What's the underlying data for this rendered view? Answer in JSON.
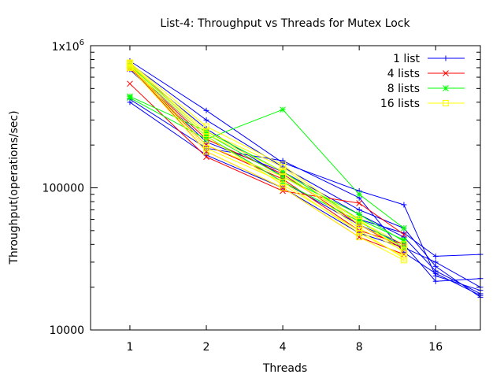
{
  "chart_data": {
    "type": "line",
    "title": "List-4: Throughput vs Threads for Mutex Lock",
    "xlabel": "Threads",
    "ylabel": "Throughput(operations/sec)",
    "x_scale": "log2",
    "y_scale": "log10",
    "xlim": [
      0.7,
      24
    ],
    "ylim": [
      10000,
      1000000
    ],
    "x_ticks": [
      {
        "value": 1,
        "label": "1"
      },
      {
        "value": 2,
        "label": "2"
      },
      {
        "value": 4,
        "label": "4"
      },
      {
        "value": 8,
        "label": "8"
      },
      {
        "value": 16,
        "label": "16"
      }
    ],
    "y_ticks": [
      {
        "value": 10000,
        "label": "10000"
      },
      {
        "value": 100000,
        "label": "100000"
      }
    ],
    "y_top_label": {
      "base": "1x10",
      "exponent": "6"
    },
    "legend_position": "top-right",
    "series": [
      {
        "name": "1 list",
        "color": "#0000ff",
        "marker": "plus",
        "runs": [
          {
            "x": [
              1,
              2,
              4,
              8,
              12,
              16,
              24
            ],
            "y": [
              780000,
              350000,
              150000,
              95000,
              76000,
              24000,
              19000
            ]
          },
          {
            "x": [
              1,
              2,
              4,
              8,
              12,
              16,
              24
            ],
            "y": [
              750000,
              300000,
              140000,
              70000,
              52000,
              28000,
              17000
            ]
          },
          {
            "x": [
              1,
              2,
              4,
              8,
              12,
              16,
              24
            ],
            "y": [
              720000,
              260000,
              120000,
              60000,
              48000,
              33000,
              34000
            ]
          },
          {
            "x": [
              1,
              2,
              4,
              8,
              12,
              16,
              24
            ],
            "y": [
              700000,
              230000,
              110000,
              55000,
              40000,
              22000,
              23000
            ]
          },
          {
            "x": [
              1,
              2,
              4,
              8,
              12,
              16,
              24
            ],
            "y": [
              680000,
              210000,
              130000,
              65000,
              45000,
              26000,
              18000
            ]
          },
          {
            "x": [
              1,
              2,
              4,
              8,
              12,
              16,
              24
            ],
            "y": [
              400000,
              170000,
              100000,
              48000,
              38000,
              30000,
              20000
            ]
          },
          {
            "x": [
              1,
              2,
              4,
              8,
              12,
              16,
              24
            ],
            "y": [
              420000,
              190000,
              155000,
              85000,
              35000,
              25000,
              17500
            ]
          }
        ]
      },
      {
        "name": "4 lists",
        "color": "#ff0000",
        "marker": "cross",
        "runs": [
          {
            "x": [
              1,
              2,
              4,
              8,
              12
            ],
            "y": [
              540000,
              165000,
              95000,
              78000,
              47000
            ]
          },
          {
            "x": [
              1,
              2,
              4,
              8,
              12
            ],
            "y": [
              720000,
              180000,
              100000,
              45000,
              34000
            ]
          },
          {
            "x": [
              1,
              2,
              4,
              8,
              12
            ],
            "y": [
              700000,
              200000,
              115000,
              50000,
              40000
            ]
          },
          {
            "x": [
              1,
              2,
              4,
              8,
              12
            ],
            "y": [
              690000,
              220000,
              125000,
              55000,
              37000
            ]
          }
        ]
      },
      {
        "name": "8 lists",
        "color": "#00ff00",
        "marker": "star",
        "runs": [
          {
            "x": [
              1,
              2,
              4,
              8,
              12
            ],
            "y": [
              430000,
              220000,
              355000,
              90000,
              52000
            ]
          },
          {
            "x": [
              1,
              2,
              4,
              8,
              12
            ],
            "y": [
              440000,
              250000,
              130000,
              60000,
              43000
            ]
          },
          {
            "x": [
              1,
              2,
              4,
              8,
              12
            ],
            "y": [
              730000,
              240000,
              120000,
              65000,
              42000
            ]
          },
          {
            "x": [
              1,
              2,
              4,
              8,
              12
            ],
            "y": [
              710000,
              230000,
              110000,
              58000,
              38000
            ]
          }
        ]
      },
      {
        "name": "16 lists",
        "color": "#ffff00",
        "marker": "square",
        "runs": [
          {
            "x": [
              1,
              2,
              4,
              8,
              12
            ],
            "y": [
              760000,
              270000,
              145000,
              58000,
              40000
            ]
          },
          {
            "x": [
              1,
              2,
              4,
              8,
              12
            ],
            "y": [
              750000,
              250000,
              140000,
              55000,
              38000
            ]
          },
          {
            "x": [
              1,
              2,
              4,
              8,
              12
            ],
            "y": [
              740000,
              240000,
              130000,
              52000,
              36000
            ]
          },
          {
            "x": [
              1,
              2,
              4,
              8,
              12
            ],
            "y": [
              730000,
              200000,
              120000,
              60000,
              35000
            ]
          },
          {
            "x": [
              1,
              2,
              4,
              8,
              12
            ],
            "y": [
              720000,
              190000,
              110000,
              48000,
              33000
            ]
          },
          {
            "x": [
              1,
              2,
              4,
              8,
              12
            ],
            "y": [
              710000,
              230000,
              105000,
              50000,
              32000
            ]
          },
          {
            "x": [
              1,
              2,
              4,
              8,
              12
            ],
            "y": [
              700000,
              180000,
              100000,
              45000,
              31000
            ]
          }
        ]
      }
    ]
  }
}
